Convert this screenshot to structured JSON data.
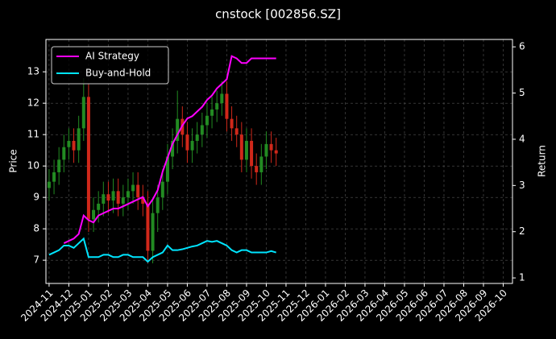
{
  "chart_data": {
    "type": "candlestick",
    "title": "cnstock [002856.SZ]",
    "ylabel": "Price",
    "y2label": "Return",
    "x": [
      0,
      0.25,
      0.5,
      0.75,
      1,
      1.25,
      1.5,
      1.75,
      2,
      2.25,
      2.5,
      2.75,
      3,
      3.25,
      3.5,
      3.75,
      4,
      4.25,
      4.5,
      4.75,
      5,
      5.25,
      5.5,
      5.75,
      6,
      6.25,
      6.5,
      6.75,
      7,
      7.25,
      7.5,
      7.75,
      8,
      8.25,
      8.5,
      8.75,
      9,
      9.25,
      9.5,
      9.75,
      10,
      10.25,
      10.5,
      10.75,
      11,
      11.25,
      11.5
    ],
    "open": [
      9.3,
      9.5,
      9.8,
      10.2,
      10.6,
      10.8,
      10.5,
      11.2,
      12.2,
      8.3,
      8.6,
      8.8,
      9.1,
      8.9,
      9.2,
      8.8,
      9.0,
      9.2,
      9.4,
      9.0,
      8.8,
      7.3,
      8.5,
      9.0,
      9.5,
      10.3,
      10.8,
      11.5,
      11.0,
      10.5,
      10.8,
      11.0,
      11.3,
      11.6,
      11.8,
      12.0,
      12.3,
      11.5,
      11.2,
      11.0,
      10.2,
      10.8,
      10.0,
      9.8,
      10.3,
      10.7,
      10.5
    ],
    "high": [
      9.9,
      10.2,
      10.6,
      11.0,
      11.2,
      11.2,
      11.6,
      12.8,
      12.6,
      9.0,
      9.2,
      9.5,
      9.5,
      9.6,
      9.6,
      9.4,
      9.6,
      9.8,
      9.8,
      9.4,
      9.2,
      8.9,
      9.4,
      9.9,
      10.7,
      11.2,
      12.4,
      11.9,
      11.4,
      11.2,
      11.4,
      11.7,
      12.0,
      12.2,
      12.4,
      12.7,
      12.7,
      11.9,
      11.6,
      11.4,
      11.2,
      11.2,
      10.4,
      10.7,
      11.1,
      11.1,
      10.9
    ],
    "low": [
      8.9,
      9.1,
      9.4,
      9.8,
      10.2,
      10.1,
      10.1,
      10.8,
      7.9,
      7.9,
      8.2,
      8.4,
      8.5,
      8.5,
      8.4,
      8.4,
      8.6,
      8.8,
      8.6,
      8.4,
      6.9,
      6.9,
      7.9,
      8.6,
      9.1,
      9.9,
      10.4,
      10.6,
      10.1,
      10.1,
      10.4,
      10.6,
      10.9,
      11.2,
      11.4,
      11.6,
      11.1,
      10.8,
      10.6,
      9.8,
      9.8,
      9.6,
      9.4,
      9.4,
      9.9,
      10.1,
      10.0
    ],
    "close": [
      9.5,
      9.8,
      10.2,
      10.6,
      10.8,
      10.5,
      11.2,
      12.2,
      8.3,
      8.6,
      8.8,
      9.1,
      8.9,
      9.2,
      8.8,
      9.0,
      9.2,
      9.4,
      9.0,
      8.8,
      7.3,
      8.5,
      9.0,
      9.5,
      10.3,
      10.8,
      11.5,
      11.0,
      10.5,
      10.8,
      11.0,
      11.3,
      11.6,
      11.8,
      12.0,
      12.3,
      11.5,
      11.2,
      11.0,
      10.2,
      10.8,
      10.0,
      9.8,
      10.3,
      10.7,
      10.5,
      10.4
    ],
    "up_color": "#228b22",
    "down_color": "#d0281a",
    "series": [
      {
        "name": "AI Strategy",
        "color": "#ff00ff",
        "axis": "y2",
        "values": [
          null,
          null,
          null,
          1.75,
          1.8,
          1.85,
          1.95,
          2.35,
          2.25,
          2.2,
          2.35,
          2.4,
          2.45,
          2.5,
          2.5,
          2.55,
          2.6,
          2.65,
          2.7,
          2.75,
          2.55,
          2.7,
          2.9,
          3.3,
          3.6,
          3.9,
          4.1,
          4.3,
          4.45,
          4.5,
          4.6,
          4.7,
          4.85,
          4.95,
          5.1,
          5.2,
          5.3,
          5.8,
          5.75,
          5.65,
          5.65,
          5.75,
          5.75,
          5.75,
          5.75,
          5.75,
          5.75
        ]
      },
      {
        "name": "Buy-and-Hold",
        "color": "#00e5ff",
        "axis": "y2",
        "values": [
          1.5,
          1.55,
          1.6,
          1.7,
          1.7,
          1.65,
          1.75,
          1.85,
          1.45,
          1.45,
          1.45,
          1.5,
          1.5,
          1.45,
          1.45,
          1.5,
          1.5,
          1.45,
          1.45,
          1.45,
          1.35,
          1.45,
          1.5,
          1.55,
          1.7,
          1.6,
          1.6,
          1.62,
          1.65,
          1.68,
          1.7,
          1.75,
          1.8,
          1.78,
          1.8,
          1.75,
          1.7,
          1.6,
          1.55,
          1.6,
          1.6,
          1.55,
          1.55,
          1.55,
          1.55,
          1.58,
          1.55
        ]
      }
    ],
    "xlim": [
      -0.16,
      23.47
    ],
    "xticks": [
      {
        "value": 0,
        "label": "2024-11"
      },
      {
        "value": 1,
        "label": "2024-12"
      },
      {
        "value": 2,
        "label": "2025-01"
      },
      {
        "value": 3,
        "label": "2025-02"
      },
      {
        "value": 4,
        "label": "2025-03"
      },
      {
        "value": 5,
        "label": "2025-04"
      },
      {
        "value": 6,
        "label": "2025-05"
      },
      {
        "value": 7,
        "label": "2025-06"
      },
      {
        "value": 8,
        "label": "2025-07"
      },
      {
        "value": 9,
        "label": "2025-08"
      },
      {
        "value": 10,
        "label": "2025-09"
      },
      {
        "value": 11,
        "label": "2025-10"
      },
      {
        "value": 12,
        "label": "2025-11"
      },
      {
        "value": 13,
        "label": "2025-12"
      },
      {
        "value": 14,
        "label": "2026-01"
      },
      {
        "value": 15,
        "label": "2026-02"
      },
      {
        "value": 16,
        "label": "2026-03"
      },
      {
        "value": 17,
        "label": "2026-04"
      },
      {
        "value": 18,
        "label": "2026-05"
      },
      {
        "value": 19,
        "label": "2026-06"
      },
      {
        "value": 20,
        "label": "2026-07"
      },
      {
        "value": 21,
        "label": "2026-08"
      },
      {
        "value": 22,
        "label": "2026-09"
      },
      {
        "value": 23,
        "label": "2026-10"
      }
    ],
    "ylim": [
      6.26,
      14.03
    ],
    "yticks": [
      7,
      8,
      9,
      10,
      11,
      12,
      13
    ],
    "y2lim": [
      0.88,
      6.16
    ],
    "y2ticks": [
      1,
      2,
      3,
      4,
      5,
      6
    ],
    "grid": true,
    "legend": "upper left"
  }
}
